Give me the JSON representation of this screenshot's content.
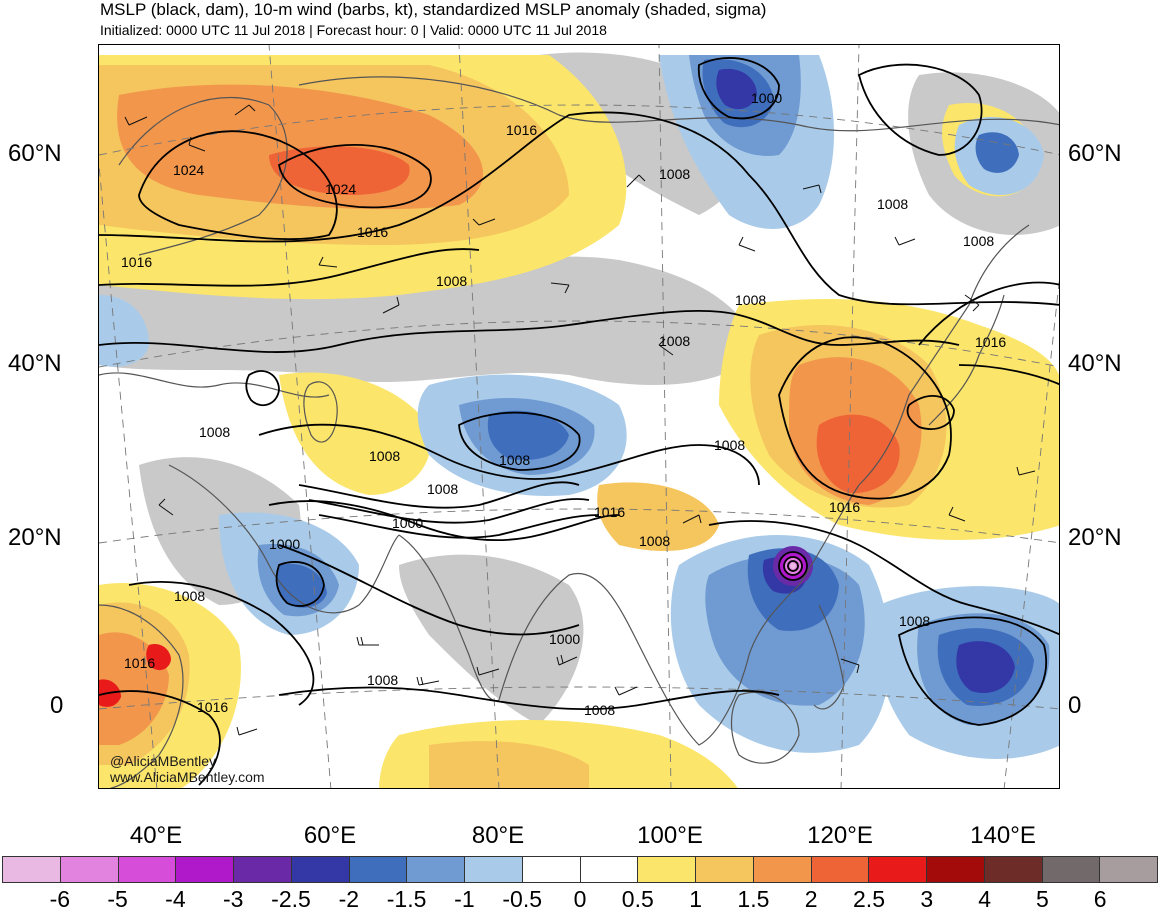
{
  "header": {
    "title": "MSLP (black, dam), 10-m wind (barbs, kt), standardized MSLP anomaly (shaded, sigma)",
    "subtitle": "Initialized: 0000 UTC 11 Jul 2018 | Forecast hour: 0 | Valid: 0000 UTC 11 Jul 2018"
  },
  "axes": {
    "lat_left": [
      "60°N",
      "40°N",
      "20°N",
      "0"
    ],
    "lat_right": [
      "60°N",
      "40°N",
      "20°N",
      "0"
    ],
    "lon_bottom": [
      "40°E",
      "60°E",
      "80°E",
      "100°E",
      "120°E",
      "140°E"
    ]
  },
  "credits": [
    "@AliciaMBentley",
    "www.AliciaMBentley.com"
  ],
  "contour_labels": [
    {
      "text": "1024"
    },
    {
      "text": "1024"
    },
    {
      "text": "1016"
    },
    {
      "text": "1016"
    },
    {
      "text": "1008"
    },
    {
      "text": "1000"
    },
    {
      "text": "1008"
    },
    {
      "text": "1008"
    },
    {
      "text": "1016"
    },
    {
      "text": "1016"
    },
    {
      "text": "1008"
    },
    {
      "text": "1008"
    },
    {
      "text": "1016"
    },
    {
      "text": "1008"
    },
    {
      "text": "1008"
    },
    {
      "text": "1008"
    },
    {
      "text": "1000"
    },
    {
      "text": "1000"
    },
    {
      "text": "1008"
    },
    {
      "text": "1016"
    },
    {
      "text": "1008"
    },
    {
      "text": "1008"
    },
    {
      "text": "1016"
    },
    {
      "text": "1008"
    },
    {
      "text": "1000"
    },
    {
      "text": "1008"
    },
    {
      "text": "1008"
    },
    {
      "text": "1008"
    },
    {
      "text": "1008"
    },
    {
      "text": "1016"
    }
  ],
  "colorbar": {
    "colors": [
      "#e9b8e3",
      "#e283df",
      "#d54dd9",
      "#b019c9",
      "#6a2aa8",
      "#3438a6",
      "#3f6ebd",
      "#6f9ad2",
      "#a9cbe9",
      "#ffffff",
      "#ffffff",
      "#fbe56a",
      "#f5c55e",
      "#f2964c",
      "#ee6436",
      "#e81a1a",
      "#a30a0a",
      "#6d2c28",
      "#72696a",
      "#a79d9e"
    ],
    "labels": [
      "-6",
      "-5",
      "-4",
      "-3",
      "-2.5",
      "-2",
      "-1.5",
      "-1",
      "-0.5",
      "0",
      "0.5",
      "1",
      "1.5",
      "2",
      "2.5",
      "3",
      "4",
      "5",
      "6"
    ]
  }
}
